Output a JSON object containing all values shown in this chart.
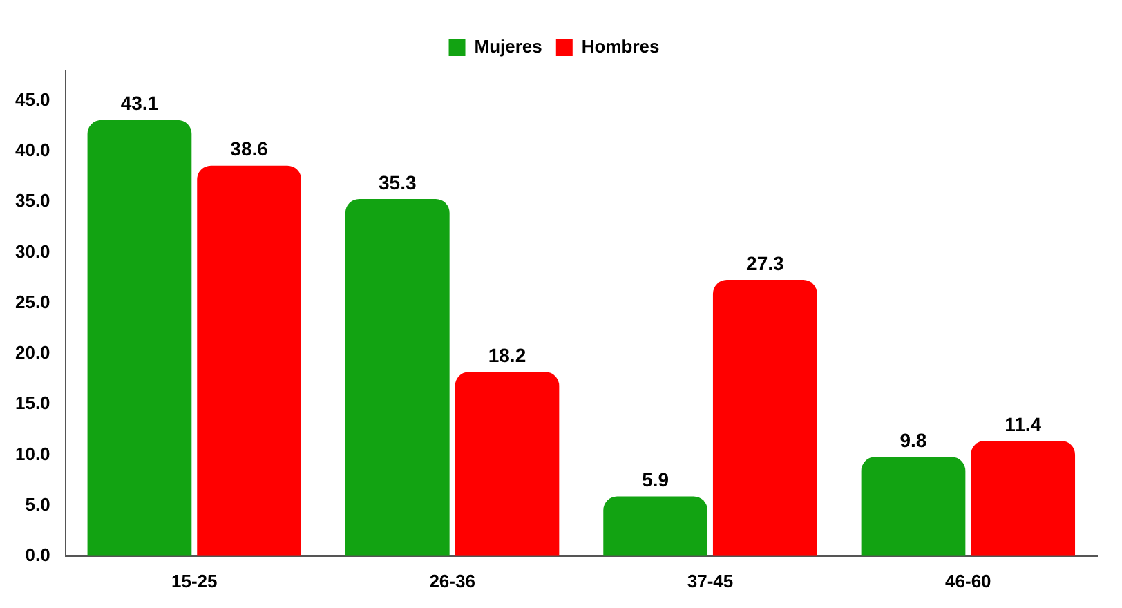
{
  "chart_data": {
    "type": "bar",
    "categories": [
      "15-25",
      "26-36",
      "37-45",
      "46-60"
    ],
    "series": [
      {
        "name": "Mujeres",
        "color": "#12a312",
        "values": [
          43.1,
          35.3,
          5.9,
          9.8
        ]
      },
      {
        "name": "Hombres",
        "color": "#ff0000",
        "values": [
          38.6,
          18.2,
          27.3,
          11.4
        ]
      }
    ],
    "ylim": [
      0,
      48
    ],
    "yticks": [
      {
        "value": 0,
        "label": "0.0"
      },
      {
        "value": 5,
        "label": "5.0"
      },
      {
        "value": 10,
        "label": "10.0"
      },
      {
        "value": 15,
        "label": "15.0"
      },
      {
        "value": 20,
        "label": "20.0"
      },
      {
        "value": 25,
        "label": "25.0"
      },
      {
        "value": 30,
        "label": "30.0"
      },
      {
        "value": 35,
        "label": "35.0"
      },
      {
        "value": 40,
        "label": "40.0"
      },
      {
        "value": 45,
        "label": "45.0"
      }
    ],
    "grid": false,
    "legend": "top",
    "data_labels": true
  }
}
